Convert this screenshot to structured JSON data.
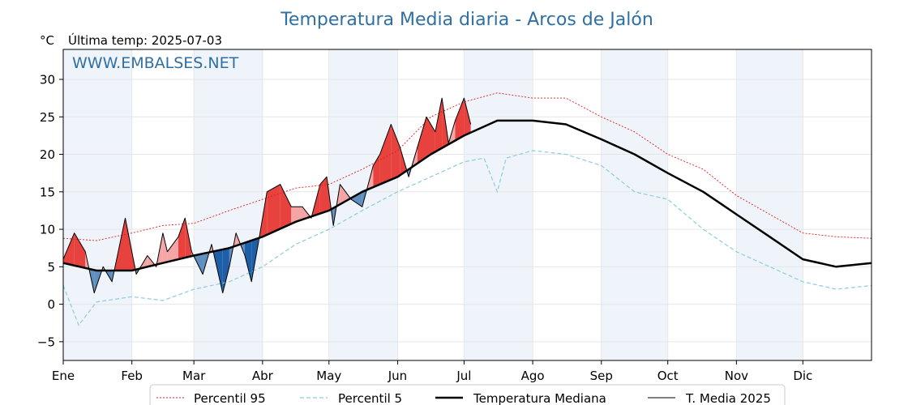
{
  "chart_data": {
    "type": "line",
    "title": "Temperatura Media diaria - Arcos de Jalón",
    "unit_label": "°C",
    "last_temp_label": "Última temp: 2025-07-03",
    "watermark": "WWW.EMBALSES.NET",
    "xlim": [
      0,
      365
    ],
    "ylim": [
      -7.5,
      34
    ],
    "yticks": [
      -5,
      0,
      5,
      10,
      15,
      20,
      25,
      30
    ],
    "month_labels": [
      "Ene",
      "Feb",
      "Mar",
      "Abr",
      "May",
      "Jun",
      "Jul",
      "Ago",
      "Sep",
      "Oct",
      "Nov",
      "Dic"
    ],
    "month_starts": [
      0,
      31,
      59,
      90,
      120,
      151,
      181,
      212,
      243,
      273,
      304,
      334
    ],
    "grid": true,
    "legend_position": "bottom",
    "colors": {
      "p95": "#e41a1c",
      "p5": "#8ecbdc",
      "median": "#000000",
      "year": "#000000",
      "above": "#f4a6a6",
      "above_strong": "#e8423f",
      "below": "#5f8fbf",
      "below_strong": "#1f5fa8",
      "band": "#eef4fa"
    },
    "series": [
      {
        "name": "Percentil 95",
        "style": "dotted",
        "x": [
          0,
          15,
          31,
          45,
          59,
          75,
          90,
          105,
          120,
          135,
          151,
          166,
          181,
          196,
          212,
          227,
          243,
          258,
          273,
          289,
          304,
          319,
          334,
          349,
          365
        ],
        "y": [
          8.8,
          8.5,
          9.5,
          10.5,
          10.8,
          12.5,
          14.0,
          15.5,
          16.0,
          18.0,
          20.5,
          25.0,
          27.0,
          28.2,
          27.5,
          27.5,
          25.0,
          23.0,
          20.0,
          18.0,
          14.5,
          12.0,
          9.5,
          9.0,
          8.8
        ]
      },
      {
        "name": "Percentil 5",
        "style": "dashed",
        "x": [
          0,
          7,
          15,
          31,
          45,
          59,
          75,
          90,
          105,
          120,
          135,
          151,
          166,
          181,
          190,
          196,
          200,
          212,
          227,
          243,
          258,
          273,
          289,
          304,
          319,
          334,
          349,
          365
        ],
        "y": [
          2.5,
          -2.8,
          0.3,
          1.0,
          0.5,
          2.0,
          3.0,
          5.0,
          8.0,
          10.0,
          12.5,
          15.0,
          17.0,
          19.0,
          19.5,
          15.0,
          19.5,
          20.5,
          20.0,
          18.5,
          15.0,
          14.0,
          10.0,
          7.0,
          5.0,
          3.0,
          2.0,
          2.5
        ]
      },
      {
        "name": "Temperatura Mediana",
        "style": "solid-thick",
        "x": [
          0,
          15,
          31,
          45,
          59,
          75,
          90,
          105,
          120,
          135,
          151,
          166,
          181,
          196,
          212,
          227,
          243,
          258,
          273,
          289,
          304,
          319,
          334,
          349,
          365
        ],
        "y": [
          5.5,
          4.5,
          4.5,
          5.5,
          6.5,
          7.5,
          9.0,
          11.0,
          12.5,
          15.0,
          17.0,
          20.0,
          22.5,
          24.5,
          24.5,
          24.0,
          22.0,
          20.0,
          17.5,
          15.0,
          12.0,
          9.0,
          6.0,
          5.0,
          5.5
        ]
      },
      {
        "name": "T. Media 2025",
        "style": "solid-thin",
        "x": [
          0,
          5,
          10,
          14,
          18,
          22,
          28,
          33,
          38,
          42,
          45,
          47,
          52,
          55,
          58,
          63,
          67,
          72,
          75,
          78,
          82,
          85,
          88,
          92,
          98,
          103,
          108,
          112,
          116,
          119,
          122,
          125,
          130,
          135,
          140,
          143,
          148,
          152,
          156,
          160,
          164,
          168,
          171,
          174,
          177,
          181,
          184
        ],
        "y": [
          6.0,
          9.5,
          7.0,
          1.5,
          5.0,
          3.0,
          11.5,
          4.0,
          6.5,
          5.0,
          9.5,
          7.0,
          9.0,
          11.5,
          7.0,
          4.0,
          8.0,
          1.5,
          5.0,
          9.5,
          6.5,
          3.0,
          8.0,
          15.0,
          16.0,
          13.0,
          13.0,
          11.5,
          16.0,
          17.0,
          10.5,
          16.0,
          14.0,
          13.0,
          18.5,
          20.0,
          24.0,
          21.0,
          17.0,
          21.0,
          25.0,
          23.0,
          27.5,
          21.5,
          24.5,
          27.5,
          24.0
        ]
      }
    ]
  },
  "legend": {
    "items": [
      {
        "label": "Percentil 95"
      },
      {
        "label": "Percentil 5"
      },
      {
        "label": "Temperatura Mediana"
      },
      {
        "label": "T. Media 2025"
      }
    ]
  }
}
